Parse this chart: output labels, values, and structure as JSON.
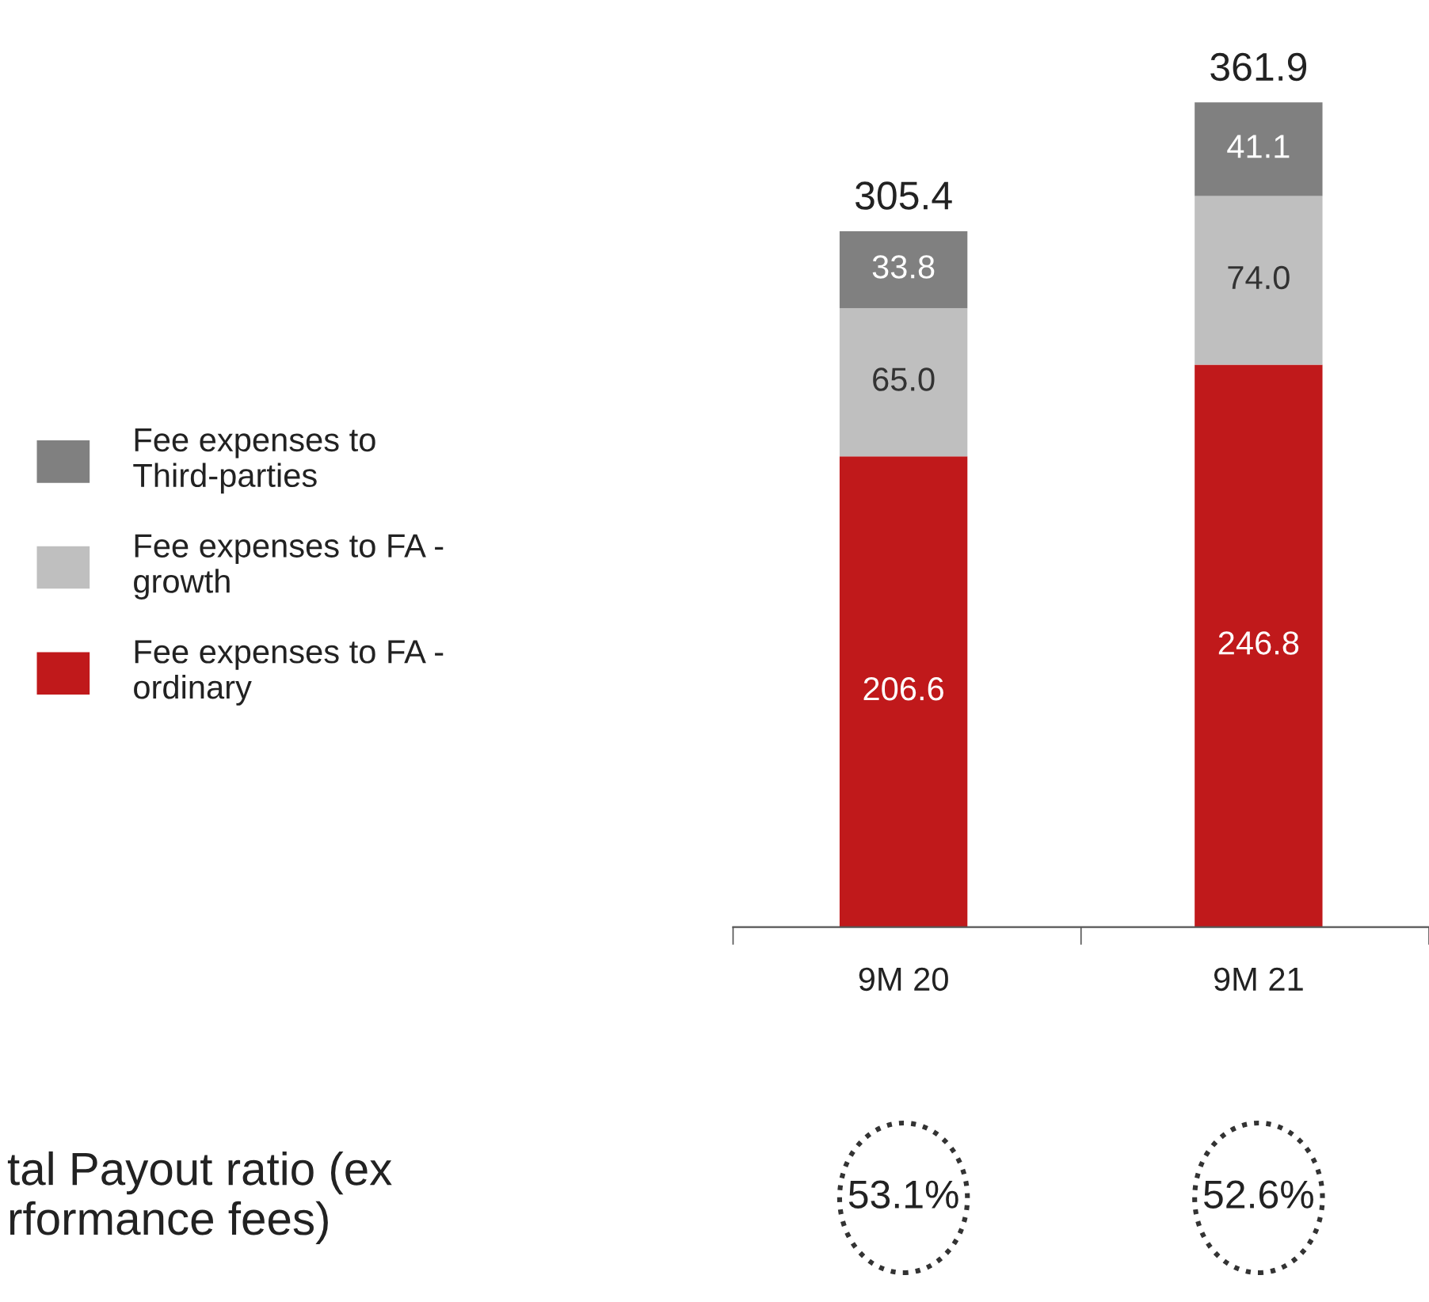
{
  "chart_data": {
    "type": "bar",
    "stacked": true,
    "legend": "left",
    "categories": [
      "9M 20",
      "9M 21"
    ],
    "series": [
      {
        "name": "Fee expenses to FA -\nordinary",
        "color": "#c0191b",
        "values": [
          206.6,
          246.8
        ],
        "value_labels": [
          "206.6",
          "246.8"
        ]
      },
      {
        "name": "Fee expenses to FA -\ngrowth",
        "color": "#bfbfbf",
        "values": [
          65.0,
          74.0
        ],
        "value_labels": [
          "65.0",
          "74.0"
        ]
      },
      {
        "name": "Fee expenses to\nThird-parties",
        "color": "#808080",
        "values": [
          33.8,
          41.1
        ],
        "value_labels": [
          "33.8",
          "41.1"
        ]
      }
    ],
    "totals": [
      "305.4",
      "361.9"
    ],
    "annotations": [
      "tal Payout ratio (ex\nrformance fees)",
      "53.1%",
      "52.6%"
    ]
  }
}
